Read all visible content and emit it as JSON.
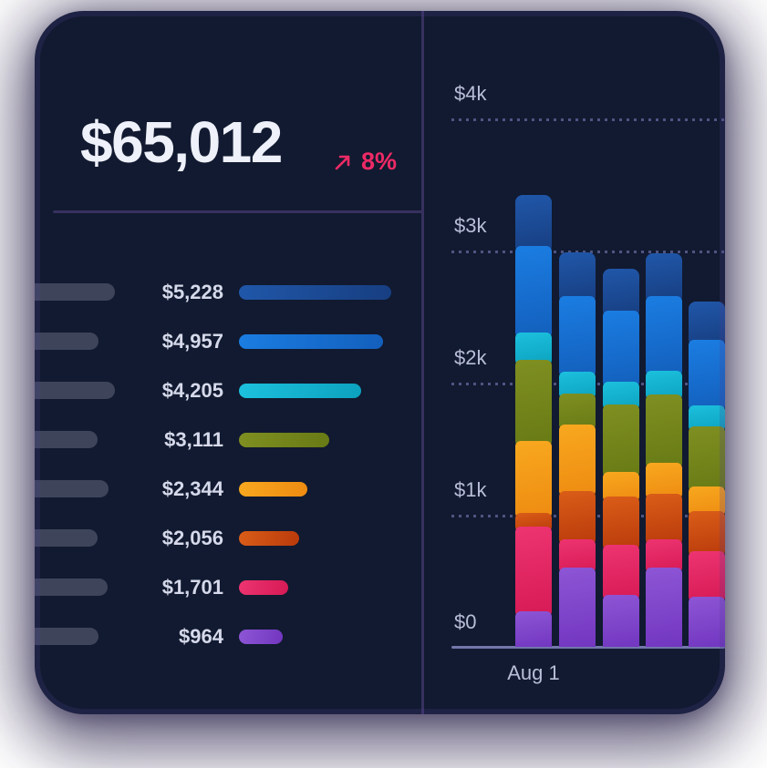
{
  "summary": {
    "total": "$65,012",
    "trend_pct": "8%",
    "trend_direction": "up"
  },
  "breakdown": {
    "rows": [
      {
        "display": "$5,228",
        "value": 5228,
        "series": "dark-blue",
        "pill_width": 88
      },
      {
        "display": "$4,957",
        "value": 4957,
        "series": "blue",
        "pill_width": 70
      },
      {
        "display": "$4,205",
        "value": 4205,
        "series": "cyan",
        "pill_width": 88
      },
      {
        "display": "$3,111",
        "value": 3111,
        "series": "green",
        "pill_width": 69
      },
      {
        "display": "$2,344",
        "value": 2344,
        "series": "orange",
        "pill_width": 81
      },
      {
        "display": "$2,056",
        "value": 2056,
        "series": "dark-orange",
        "pill_width": 69
      },
      {
        "display": "$1,701",
        "value": 1701,
        "series": "pink",
        "pill_width": 80
      },
      {
        "display": "$964",
        "value": 964,
        "series": "purple",
        "pill_width": 70
      }
    ]
  },
  "chart_data": {
    "type": "bar",
    "stacked": true,
    "title": "",
    "xlabel": "",
    "ylabel": "",
    "ylim": [
      0,
      4000
    ],
    "grid": "dotted horizontal",
    "legend": "none",
    "y_ticks": [
      {
        "label": "$4k",
        "value": 4000
      },
      {
        "label": "$3k",
        "value": 3000
      },
      {
        "label": "$2k",
        "value": 2000
      },
      {
        "label": "$1k",
        "value": 1000
      },
      {
        "label": "$0",
        "value": 0
      }
    ],
    "x_ticks": [
      "Aug 1",
      "",
      "",
      "",
      ""
    ],
    "bar_totals": [
      3420,
      2985,
      2865,
      2980,
      2615
    ],
    "stack_order": "bottom-to-top",
    "series": [
      {
        "name": "purple",
        "color_top": "#8d56d5",
        "color_bottom": "#7236c0",
        "values": [
          230,
          560,
          350,
          560,
          340
        ]
      },
      {
        "name": "pink",
        "color_top": "#ed3471",
        "color_bottom": "#d61a55",
        "values": [
          640,
          210,
          380,
          210,
          340
        ]
      },
      {
        "name": "dark-orange",
        "color_top": "#da5d18",
        "color_bottom": "#b93a0b",
        "values": [
          100,
          365,
          365,
          345,
          305
        ]
      },
      {
        "name": "orange",
        "color_top": "#f8a81f",
        "color_bottom": "#ee8b11",
        "values": [
          550,
          505,
          190,
          240,
          185
        ]
      },
      {
        "name": "green",
        "color_top": "#7f8f21",
        "color_bottom": "#687a15",
        "values": [
          610,
          235,
          510,
          515,
          460
        ]
      },
      {
        "name": "cyan",
        "color_top": "#1cc0dd",
        "color_bottom": "#0ca2bf",
        "values": [
          210,
          170,
          170,
          180,
          160
        ]
      },
      {
        "name": "blue",
        "color_top": "#1b7de2",
        "color_bottom": "#135fbc",
        "values": [
          650,
          570,
          540,
          565,
          495
        ]
      },
      {
        "name": "dark-blue",
        "color_top": "#2057a9",
        "color_bottom": "#173e81",
        "values": [
          430,
          370,
          360,
          365,
          330
        ]
      }
    ]
  },
  "colors": {
    "card_bg": "#111a30",
    "accent_pink": "#ee2a66",
    "divider": "#37315f",
    "pill": "#3e455b",
    "text_primary": "#eef0fa",
    "text_secondary": "#d5d9ea",
    "axis_label": "#b9bed8",
    "grid_dot": "#4f5483",
    "axis_line": "#7277ab"
  }
}
